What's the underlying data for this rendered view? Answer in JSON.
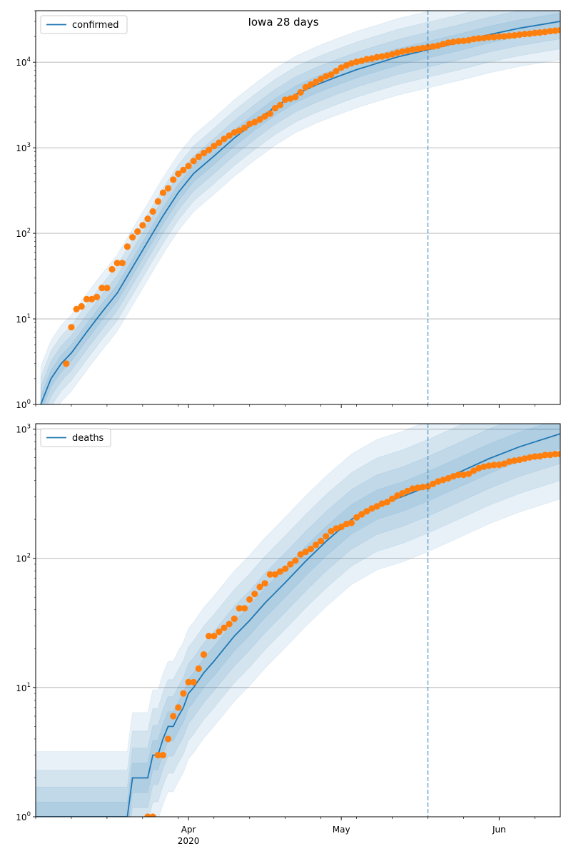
{
  "title": "Iowa 28 days",
  "chart_data": [
    {
      "type": "line",
      "panel": "top",
      "yscale": "log",
      "ylim": [
        1,
        40000
      ],
      "xlim": [
        "2020-03-02",
        "2020-06-13"
      ],
      "grid": "y-major",
      "legend": {
        "placement": "top-left",
        "entries": [
          "confirmed"
        ]
      },
      "y_tick_labels": [
        {
          "v": 1,
          "base": "10",
          "exp": "0"
        },
        {
          "v": 10,
          "base": "10",
          "exp": "1"
        },
        {
          "v": 100,
          "base": "10",
          "exp": "2"
        },
        {
          "v": 1000,
          "base": "10",
          "exp": "3"
        },
        {
          "v": 10000,
          "base": "10",
          "exp": "4"
        }
      ],
      "vline_date": "2020-05-18",
      "series": [
        {
          "name": "confirmed",
          "style": "model line with shaded uncertainty bands",
          "x": [
            "2020-03-03",
            "2020-03-05",
            "2020-03-07",
            "2020-03-09",
            "2020-03-12",
            "2020-03-15",
            "2020-03-18",
            "2020-03-21",
            "2020-03-24",
            "2020-03-27",
            "2020-03-30",
            "2020-04-02",
            "2020-04-06",
            "2020-04-10",
            "2020-04-14",
            "2020-04-18",
            "2020-04-22",
            "2020-04-26",
            "2020-04-30",
            "2020-05-04",
            "2020-05-08",
            "2020-05-12",
            "2020-05-18",
            "2020-05-24",
            "2020-05-30",
            "2020-06-05",
            "2020-06-13"
          ],
          "y": [
            1,
            2,
            3,
            4,
            7,
            12,
            20,
            40,
            80,
            160,
            300,
            500,
            800,
            1300,
            2000,
            3000,
            4200,
            5400,
            6700,
            8200,
            9700,
            11500,
            14000,
            17000,
            21000,
            25000,
            30000
          ]
        },
        {
          "name": "",
          "style": "observed points",
          "x": [
            "2020-03-08",
            "2020-03-09",
            "2020-03-10",
            "2020-03-11",
            "2020-03-12",
            "2020-03-13",
            "2020-03-14",
            "2020-03-15",
            "2020-03-16",
            "2020-03-17",
            "2020-03-18",
            "2020-03-19",
            "2020-03-20",
            "2020-03-21",
            "2020-03-22",
            "2020-03-23",
            "2020-03-24",
            "2020-03-25",
            "2020-03-26",
            "2020-03-27",
            "2020-03-28",
            "2020-03-29",
            "2020-03-30",
            "2020-03-31",
            "2020-04-01",
            "2020-04-02",
            "2020-04-03",
            "2020-04-04",
            "2020-04-05",
            "2020-04-06",
            "2020-04-07",
            "2020-04-08",
            "2020-04-09",
            "2020-04-10",
            "2020-04-11",
            "2020-04-12",
            "2020-04-13",
            "2020-04-14",
            "2020-04-15",
            "2020-04-16",
            "2020-04-17",
            "2020-04-18",
            "2020-04-19",
            "2020-04-20",
            "2020-04-21",
            "2020-04-22",
            "2020-04-23",
            "2020-04-24",
            "2020-04-25",
            "2020-04-26",
            "2020-04-27",
            "2020-04-28",
            "2020-04-29",
            "2020-04-30",
            "2020-05-01",
            "2020-05-02",
            "2020-05-03",
            "2020-05-04",
            "2020-05-05",
            "2020-05-06",
            "2020-05-07",
            "2020-05-08",
            "2020-05-09",
            "2020-05-10",
            "2020-05-11",
            "2020-05-12",
            "2020-05-13",
            "2020-05-14",
            "2020-05-15",
            "2020-05-16",
            "2020-05-17",
            "2020-05-18",
            "2020-05-19",
            "2020-05-20",
            "2020-05-21",
            "2020-05-22",
            "2020-05-23",
            "2020-05-24",
            "2020-05-25",
            "2020-05-26",
            "2020-05-27",
            "2020-05-28",
            "2020-05-29",
            "2020-05-30",
            "2020-05-31",
            "2020-06-01",
            "2020-06-02",
            "2020-06-03",
            "2020-06-04",
            "2020-06-05",
            "2020-06-06",
            "2020-06-07",
            "2020-06-08",
            "2020-06-09",
            "2020-06-10",
            "2020-06-11",
            "2020-06-12",
            "2020-06-13"
          ],
          "y": [
            3,
            8,
            13,
            14,
            17,
            17,
            18,
            23,
            23,
            38,
            45,
            45,
            70,
            90,
            105,
            124,
            148,
            180,
            236,
            298,
            336,
            424,
            497,
            549,
            614,
            699,
            786,
            868,
            946,
            1048,
            1145,
            1270,
            1388,
            1510,
            1587,
            1710,
            1899,
            1995,
            2141,
            2332,
            2513,
            2902,
            3159,
            3641,
            3748,
            3924,
            4445,
            5092,
            5476,
            5868,
            6376,
            6843,
            7145,
            7884,
            8641,
            9169,
            9703,
            10111,
            10404,
            10843,
            11059,
            11457,
            11671,
            11959,
            12373,
            12912,
            13289,
            13675,
            14049,
            14328,
            14651,
            14955,
            15252,
            15620,
            16280,
            16893,
            17252,
            17585,
            17783,
            18079,
            18672,
            18953,
            19159,
            19552,
            19670,
            19950,
            20038,
            20376,
            20594,
            20987,
            21344,
            21571,
            22004,
            22236,
            22573,
            23063,
            23350,
            23700
          ]
        }
      ]
    },
    {
      "type": "line",
      "panel": "bottom",
      "yscale": "log",
      "ylim": [
        1,
        1100
      ],
      "xlim": [
        "2020-03-02",
        "2020-06-13"
      ],
      "grid": "y-major",
      "legend": {
        "placement": "top-left",
        "entries": [
          "deaths"
        ]
      },
      "y_tick_labels": [
        {
          "v": 1,
          "base": "10",
          "exp": "0"
        },
        {
          "v": 10,
          "base": "10",
          "exp": "1"
        },
        {
          "v": 100,
          "base": "10",
          "exp": "2"
        },
        {
          "v": 1000,
          "base": "10",
          "exp": "3"
        }
      ],
      "x_tick_labels": [
        {
          "date": "2020-04-01",
          "label": "Apr",
          "sub": "2020"
        },
        {
          "date": "2020-05-01",
          "label": "May",
          "sub": ""
        },
        {
          "date": "2020-06-01",
          "label": "Jun",
          "sub": ""
        }
      ],
      "vline_date": "2020-05-18",
      "series": [
        {
          "name": "deaths",
          "style": "model line with shaded uncertainty bands",
          "x": [
            "2020-03-02",
            "2020-03-20",
            "2020-03-21",
            "2020-03-23",
            "2020-03-24",
            "2020-03-25",
            "2020-03-26",
            "2020-03-27",
            "2020-03-28",
            "2020-03-29",
            "2020-03-30",
            "2020-03-31",
            "2020-04-01",
            "2020-04-02",
            "2020-04-04",
            "2020-04-06",
            "2020-04-08",
            "2020-04-10",
            "2020-04-13",
            "2020-04-16",
            "2020-04-20",
            "2020-04-24",
            "2020-04-28",
            "2020-05-03",
            "2020-05-08",
            "2020-05-13",
            "2020-05-18",
            "2020-05-24",
            "2020-05-30",
            "2020-06-05",
            "2020-06-13"
          ],
          "y": [
            1,
            1,
            2,
            2,
            2,
            3,
            3,
            4,
            5,
            5,
            6,
            7,
            9,
            10,
            13,
            16,
            20,
            25,
            33,
            45,
            65,
            95,
            135,
            200,
            260,
            300,
            360,
            460,
            590,
            730,
            920
          ]
        },
        {
          "name": "",
          "style": "observed points",
          "x": [
            "2020-03-24",
            "2020-03-25",
            "2020-03-26",
            "2020-03-27",
            "2020-03-28",
            "2020-03-29",
            "2020-03-30",
            "2020-03-31",
            "2020-04-01",
            "2020-04-02",
            "2020-04-03",
            "2020-04-04",
            "2020-04-05",
            "2020-04-06",
            "2020-04-07",
            "2020-04-08",
            "2020-04-09",
            "2020-04-10",
            "2020-04-11",
            "2020-04-12",
            "2020-04-13",
            "2020-04-14",
            "2020-04-15",
            "2020-04-16",
            "2020-04-17",
            "2020-04-18",
            "2020-04-19",
            "2020-04-20",
            "2020-04-21",
            "2020-04-22",
            "2020-04-23",
            "2020-04-24",
            "2020-04-25",
            "2020-04-26",
            "2020-04-27",
            "2020-04-28",
            "2020-04-29",
            "2020-04-30",
            "2020-05-01",
            "2020-05-02",
            "2020-05-03",
            "2020-05-04",
            "2020-05-05",
            "2020-05-06",
            "2020-05-07",
            "2020-05-08",
            "2020-05-09",
            "2020-05-10",
            "2020-05-11",
            "2020-05-12",
            "2020-05-13",
            "2020-05-14",
            "2020-05-15",
            "2020-05-16",
            "2020-05-17",
            "2020-05-18",
            "2020-05-19",
            "2020-05-20",
            "2020-05-21",
            "2020-05-22",
            "2020-05-23",
            "2020-05-24",
            "2020-05-25",
            "2020-05-26",
            "2020-05-27",
            "2020-05-28",
            "2020-05-29",
            "2020-05-30",
            "2020-05-31",
            "2020-06-01",
            "2020-06-02",
            "2020-06-03",
            "2020-06-04",
            "2020-06-05",
            "2020-06-06",
            "2020-06-07",
            "2020-06-08",
            "2020-06-09",
            "2020-06-10",
            "2020-06-11",
            "2020-06-12",
            "2020-06-13"
          ],
          "y": [
            1,
            1,
            3,
            3,
            4,
            6,
            7,
            9,
            11,
            11,
            14,
            18,
            25,
            25,
            27,
            29,
            31,
            34,
            41,
            41,
            48,
            53,
            60,
            64,
            75,
            75,
            79,
            83,
            90,
            96,
            107,
            112,
            118,
            127,
            136,
            148,
            162,
            170,
            175,
            184,
            188,
            207,
            219,
            231,
            243,
            252,
            265,
            272,
            289,
            306,
            318,
            332,
            346,
            351,
            356,
            360,
            377,
            393,
            404,
            416,
            431,
            443,
            443,
            451,
            476,
            498,
            511,
            521,
            527,
            530,
            540,
            561,
            570,
            579,
            591,
            603,
            613,
            616,
            630,
            631,
            641,
            641
          ]
        }
      ]
    }
  ]
}
